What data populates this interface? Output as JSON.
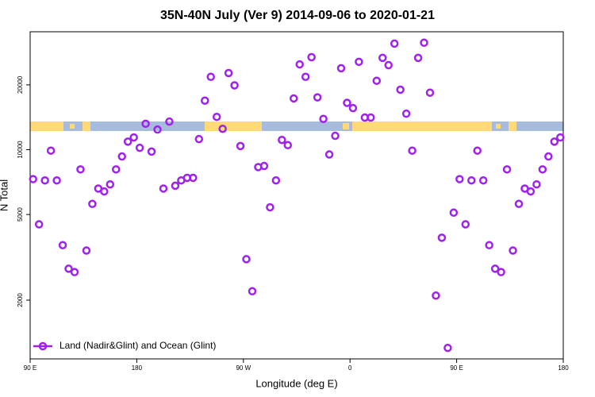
{
  "chart_data": {
    "type": "scatter",
    "title": "35N-40N July (Ver 9)   2014-09-06 to 2020-01-21",
    "xlabel": "Longitude (deg E)",
    "ylabel": "N Total",
    "xlim": [
      90,
      540
    ],
    "xticks": [
      {
        "value": 90,
        "label": "90 E"
      },
      180,
      {
        "value": 270,
        "label": "90 W"
      },
      {
        "value": 360,
        "label": "0"
      },
      {
        "value": 450,
        "label": "90 E"
      },
      {
        "value": 540,
        "label": "180"
      }
    ],
    "ylim": [
      1067,
      35300
    ],
    "yscale": "log",
    "yticks": [
      2000,
      5000,
      10000,
      20000
    ],
    "legend": "bottom-left",
    "x": [
      92.5,
      97.5,
      102.5,
      107.5,
      112.5,
      117.5,
      122.5,
      127.5,
      132.5,
      137.5,
      142.5,
      147.5,
      152.5,
      157.5,
      162.5,
      167.5,
      172.5,
      177.5,
      182.5,
      187.5,
      192.5,
      197.5,
      202.5,
      207.5,
      212.5,
      217.5,
      222.5,
      227.5,
      232.5,
      237.5,
      242.5,
      247.5,
      252.5,
      257.5,
      262.5,
      267.5,
      272.5,
      277.5,
      282.5,
      287.5,
      292.5,
      297.5,
      302.5,
      307.5,
      312.5,
      317.5,
      322.5,
      327.5,
      332.5,
      337.5,
      342.5,
      347.5,
      352.5,
      357.5,
      362.5,
      367.5,
      372.5,
      377.5,
      382.5,
      387.5,
      392.5,
      397.5,
      402.5,
      407.5,
      412.5,
      417.5,
      422.5,
      427.5,
      432.5,
      437.5,
      442.5,
      447.5,
      452.5,
      457.5,
      462.5,
      467.5,
      472.5,
      477.5,
      482.5,
      487.5,
      492.5,
      497.5,
      502.5,
      507.5,
      512.5,
      517.5,
      522.5,
      527.5,
      532.5,
      537.5
    ],
    "series": [
      {
        "name": "Land (Nadir&Glint) and Ocean (Glint)",
        "color": "#a020f0",
        "values": [
          7300,
          4500,
          7200,
          9900,
          7200,
          3600,
          2800,
          2700,
          8100,
          3400,
          5600,
          6600,
          6400,
          6900,
          8100,
          9300,
          10900,
          11400,
          10200,
          13200,
          9800,
          12400,
          6600,
          13500,
          6800,
          7200,
          7400,
          7400,
          11200,
          16900,
          21800,
          14200,
          12500,
          22700,
          19900,
          10400,
          3100,
          2200,
          8300,
          8400,
          5400,
          7200,
          11100,
          10500,
          17300,
          24900,
          21800,
          26900,
          17500,
          13900,
          9500,
          11600,
          23900,
          16500,
          15600,
          25600,
          14100,
          14100,
          20900,
          26700,
          24700,
          31100,
          19000,
          14700,
          9900,
          26700,
          31400,
          18400,
          2100,
          3900,
          1200,
          5100,
          7300,
          4500,
          7200,
          9900,
          7200,
          3600,
          2800,
          2700,
          8100,
          3400,
          5600,
          6600,
          6400,
          6900,
          8100,
          9300,
          10900,
          11400
        ]
      }
    ]
  }
}
